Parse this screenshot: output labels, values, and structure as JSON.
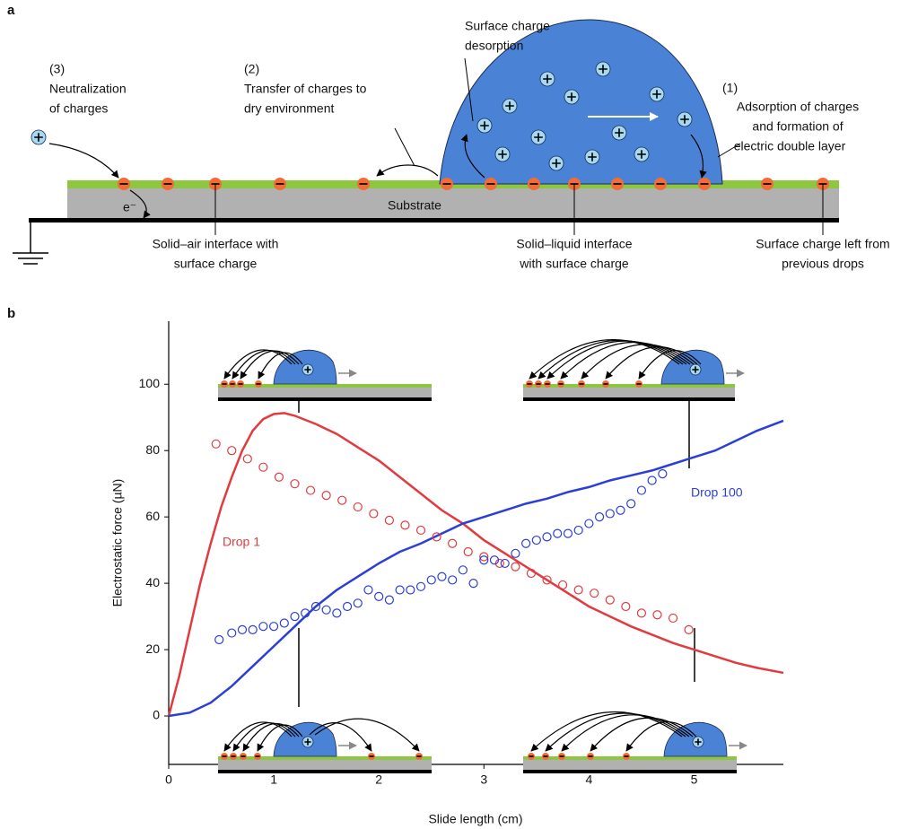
{
  "panel_a": {
    "label": "a",
    "desorption": [
      "Surface charge",
      "desorption"
    ],
    "neutralization": [
      "(3)",
      "Neutralization",
      "of charges"
    ],
    "transfer": [
      "(2)",
      "Transfer of charges to",
      "dry environment"
    ],
    "adsorption": [
      "(1)",
      "Adsorption of charges",
      "and formation of",
      "electric double layer"
    ],
    "electron": "e⁻",
    "substrate": "Substrate",
    "solid_air": [
      "Solid–air interface with",
      "surface charge"
    ],
    "solid_liquid": [
      "Solid–liquid interface",
      "with surface charge"
    ],
    "left_charge": [
      "Surface charge left from",
      "previous drops"
    ]
  },
  "chart_data": {
    "type": "line",
    "label": "b",
    "xlabel": "Slide length (cm)",
    "ylabel": "Electrostatic force (µN)",
    "xlim": [
      0,
      5.85
    ],
    "ylim": [
      -14.6,
      119
    ],
    "xticks": [
      0,
      1,
      2,
      3,
      4,
      5
    ],
    "yticks": [
      0,
      20,
      40,
      60,
      80,
      100
    ],
    "series": [
      {
        "name": "Drop 1",
        "type": "line",
        "color": "#e23b3f",
        "x": [
          0,
          0.1,
          0.2,
          0.3,
          0.4,
          0.5,
          0.6,
          0.7,
          0.8,
          0.9,
          1.0,
          1.1,
          1.2,
          1.4,
          1.6,
          1.8,
          2.0,
          2.2,
          2.4,
          2.6,
          2.8,
          3.0,
          3.2,
          3.4,
          3.6,
          3.8,
          4.0,
          4.2,
          4.4,
          4.6,
          4.8,
          5.0,
          5.2,
          5.4,
          5.6,
          5.85
        ],
        "values": [
          0,
          12,
          26,
          40,
          52,
          63,
          72,
          80,
          86,
          89.5,
          91,
          91.3,
          90.5,
          88,
          85,
          81,
          77,
          72,
          67,
          62,
          58,
          53,
          49,
          45,
          41,
          37,
          33,
          30,
          27,
          24.5,
          22,
          20,
          18,
          16,
          14.5,
          13
        ]
      },
      {
        "name": "Drop 100",
        "type": "line",
        "color": "#2b3fd8",
        "x": [
          0,
          0.2,
          0.4,
          0.6,
          0.8,
          1.0,
          1.2,
          1.4,
          1.6,
          1.8,
          2.0,
          2.2,
          2.4,
          2.6,
          2.8,
          3.0,
          3.2,
          3.4,
          3.6,
          3.8,
          4.0,
          4.2,
          4.4,
          4.6,
          4.8,
          5.0,
          5.2,
          5.4,
          5.6,
          5.85
        ],
        "values": [
          0,
          1,
          4,
          9,
          15,
          21,
          27,
          33,
          38,
          42,
          46,
          49.5,
          52,
          55,
          58,
          60,
          62,
          64,
          65.5,
          67.5,
          69,
          71,
          72.5,
          74,
          76,
          78,
          80,
          83,
          86,
          89
        ]
      },
      {
        "type": "scatter",
        "color": "#e23b3f",
        "x": [
          0.45,
          0.6,
          0.75,
          0.9,
          1.05,
          1.2,
          1.35,
          1.5,
          1.65,
          1.8,
          1.95,
          2.1,
          2.25,
          2.4,
          2.55,
          2.7,
          2.85,
          3.0,
          3.15,
          3.3,
          3.45,
          3.6,
          3.75,
          3.9,
          4.05,
          4.2,
          4.35,
          4.5,
          4.65,
          4.8,
          4.95
        ],
        "values": [
          82,
          80,
          77.5,
          75,
          72,
          70,
          68,
          66.5,
          65,
          63,
          61,
          59,
          57.5,
          56,
          54,
          52,
          49.5,
          48,
          46,
          45,
          43,
          41,
          39.5,
          38,
          37,
          35,
          33,
          31,
          30.5,
          29.5,
          26
        ]
      },
      {
        "type": "scatter",
        "color": "#2b3fd8",
        "x": [
          0.48,
          0.6,
          0.7,
          0.8,
          0.9,
          1.0,
          1.1,
          1.2,
          1.3,
          1.4,
          1.5,
          1.6,
          1.7,
          1.8,
          1.9,
          2.0,
          2.1,
          2.2,
          2.3,
          2.4,
          2.5,
          2.6,
          2.7,
          2.8,
          2.9,
          3.0,
          3.1,
          3.2,
          3.3,
          3.4,
          3.5,
          3.6,
          3.7,
          3.8,
          3.9,
          4.0,
          4.1,
          4.2,
          4.3,
          4.4,
          4.5,
          4.6,
          4.7
        ],
        "values": [
          23,
          25,
          26,
          26,
          27,
          27,
          28,
          30,
          31,
          33,
          32,
          31,
          33,
          34,
          38,
          36,
          35,
          38,
          38,
          39,
          41,
          42,
          41,
          44,
          40,
          47,
          47,
          46,
          49,
          52,
          53,
          54,
          55,
          55,
          56,
          58,
          60,
          61,
          62,
          64,
          68,
          71,
          73
        ]
      }
    ]
  }
}
